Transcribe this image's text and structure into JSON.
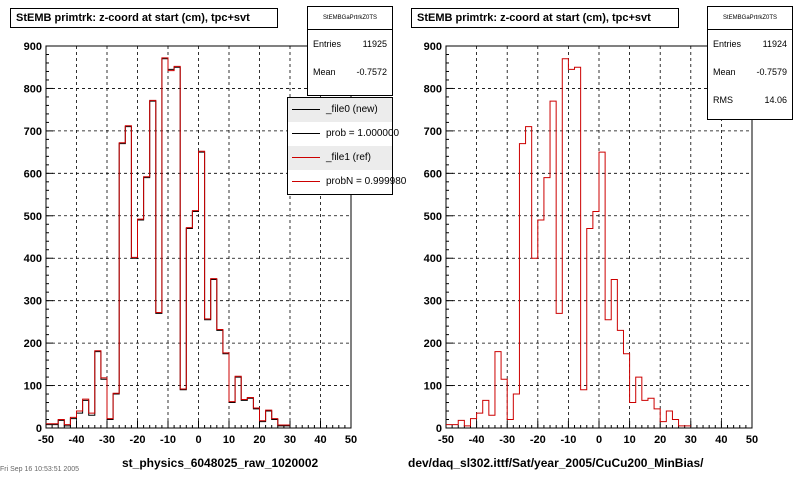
{
  "colors": {
    "file0": "#000000",
    "file1": "#cc0000",
    "frame": "#000000"
  },
  "chart_data": [
    {
      "type": "bar",
      "title": "StEMB primtrk: z-coord at start (cm), tpc+svt",
      "xlabel": "st_physics_6048025_raw_1020002",
      "ylabel": "",
      "xlim": [
        -50,
        50
      ],
      "ylim": [
        0,
        900
      ],
      "xticks": [
        -50,
        -40,
        -30,
        -20,
        -10,
        0,
        10,
        20,
        30,
        40,
        50
      ],
      "yticks": [
        0,
        100,
        200,
        300,
        400,
        500,
        600,
        700,
        800,
        900
      ],
      "grid": true,
      "bin_edges_start": -50,
      "bin_width": 2,
      "stats": {
        "name": "StEMBGaPrtrkZ0TS",
        "entries_label": "Entries",
        "entries": "11925",
        "mean_label": "Mean",
        "mean": "-0.7572"
      },
      "legend": {
        "placement": "top-right",
        "entries": [
          "_file0 (new)",
          "prob = 1.000000",
          "_file1 (ref)",
          "probN = 0.999980"
        ]
      },
      "series": [
        {
          "name": "_file0 (new)",
          "values": [
            8,
            8,
            18,
            5,
            22,
            35,
            65,
            30,
            180,
            115,
            20,
            80,
            670,
            710,
            400,
            490,
            590,
            770,
            270,
            870,
            845,
            850,
            90,
            470,
            510,
            650,
            255,
            350,
            230,
            175,
            60,
            120,
            65,
            70,
            45,
            15,
            40,
            20,
            5,
            5
          ]
        },
        {
          "name": "_file1 (ref)",
          "values": [
            10,
            10,
            20,
            8,
            25,
            40,
            68,
            35,
            182,
            118,
            22,
            82,
            672,
            712,
            402,
            492,
            592,
            772,
            272,
            872,
            842,
            852,
            92,
            472,
            512,
            652,
            257,
            352,
            232,
            177,
            62,
            122,
            67,
            72,
            47,
            17,
            42,
            22,
            7,
            7
          ]
        }
      ]
    },
    {
      "type": "bar",
      "title": "StEMB primtrk: z-coord at start (cm), tpc+svt",
      "xlabel": "dev/daq_sl302.ittf/Sat/year_2005/CuCu200_MinBias/",
      "ylabel": "",
      "xlim": [
        -50,
        50
      ],
      "ylim": [
        0,
        900
      ],
      "xticks": [
        -50,
        -40,
        -30,
        -20,
        -10,
        0,
        10,
        20,
        30,
        40,
        50
      ],
      "yticks": [
        0,
        100,
        200,
        300,
        400,
        500,
        600,
        700,
        800,
        900
      ],
      "grid": true,
      "bin_edges_start": -50,
      "bin_width": 2,
      "stats": {
        "name": "StEMBGaPrtrkZ0TS",
        "entries_label": "Entries",
        "entries": "11924",
        "mean_label": "Mean",
        "mean": "-0.7579",
        "rms_label": "RMS",
        "rms": "14.06"
      },
      "series": [
        {
          "name": "",
          "values": [
            8,
            8,
            18,
            5,
            22,
            35,
            65,
            30,
            180,
            115,
            20,
            80,
            670,
            710,
            400,
            490,
            590,
            770,
            270,
            870,
            845,
            850,
            90,
            470,
            510,
            650,
            255,
            350,
            230,
            175,
            60,
            120,
            65,
            70,
            45,
            15,
            40,
            20,
            5,
            5
          ]
        }
      ]
    }
  ],
  "footer_left": "Fri Sep 16 10:53:51 2005"
}
